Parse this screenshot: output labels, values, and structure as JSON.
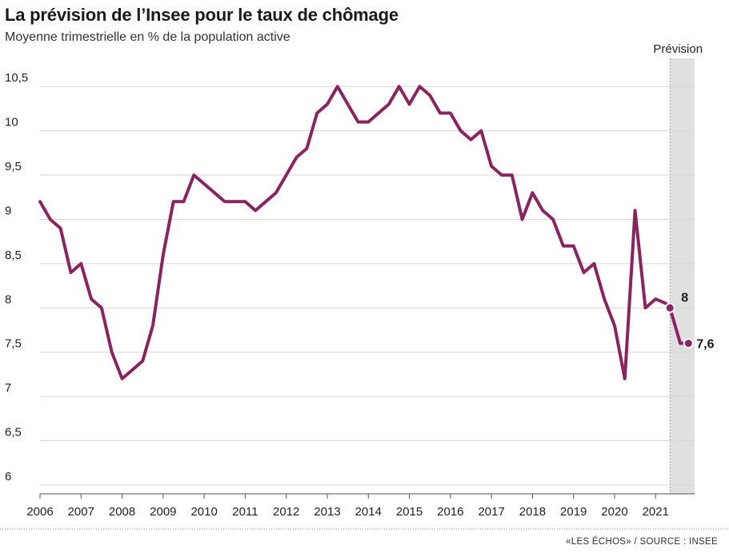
{
  "title": "La prévision de l’Insee pour le taux de chômage",
  "subtitle": "Moyenne trimestrielle en % de la population active",
  "source": "«LES ÉCHOS» / SOURCE : INSEE",
  "colors": {
    "line": "#8a2460",
    "forecast_band": "#e0e0e0",
    "grid": "#d6d6d6"
  },
  "chart_data": {
    "type": "line",
    "title": "La prévision de l’Insee pour le taux de chômage",
    "subtitle": "Moyenne trimestrielle en % de la population active",
    "xlabel": "",
    "ylabel": "",
    "x_ticks": [
      "2006",
      "2007",
      "2008",
      "2009",
      "2010",
      "2011",
      "2012",
      "2013",
      "2014",
      "2015",
      "2016",
      "2017",
      "2018",
      "2019",
      "2020",
      "2021"
    ],
    "y_ticks": [
      "6",
      "6,5",
      "7",
      "7,5",
      "8",
      "8,5",
      "9",
      "9,5",
      "10",
      "10,5"
    ],
    "ylim": [
      5.9,
      10.8
    ],
    "xlim": [
      2006.0,
      2021.95
    ],
    "grid": true,
    "forecast": {
      "label": "Prévision",
      "start": 2021.35,
      "end": 2021.95
    },
    "series": [
      {
        "values": [
          [
            2006.0,
            9.2
          ],
          [
            2006.25,
            9.0
          ],
          [
            2006.5,
            8.9
          ],
          [
            2006.75,
            8.4
          ],
          [
            2007.0,
            8.5
          ],
          [
            2007.25,
            8.1
          ],
          [
            2007.5,
            8.0
          ],
          [
            2007.75,
            7.5
          ],
          [
            2008.0,
            7.2
          ],
          [
            2008.25,
            7.3
          ],
          [
            2008.5,
            7.4
          ],
          [
            2008.75,
            7.8
          ],
          [
            2009.0,
            8.6
          ],
          [
            2009.25,
            9.2
          ],
          [
            2009.5,
            9.2
          ],
          [
            2009.75,
            9.5
          ],
          [
            2010.0,
            9.4
          ],
          [
            2010.25,
            9.3
          ],
          [
            2010.5,
            9.2
          ],
          [
            2010.75,
            9.2
          ],
          [
            2011.0,
            9.2
          ],
          [
            2011.25,
            9.1
          ],
          [
            2011.5,
            9.2
          ],
          [
            2011.75,
            9.3
          ],
          [
            2012.0,
            9.5
          ],
          [
            2012.25,
            9.7
          ],
          [
            2012.5,
            9.8
          ],
          [
            2012.75,
            10.2
          ],
          [
            2013.0,
            10.3
          ],
          [
            2013.25,
            10.5
          ],
          [
            2013.5,
            10.3
          ],
          [
            2013.75,
            10.1
          ],
          [
            2014.0,
            10.1
          ],
          [
            2014.25,
            10.2
          ],
          [
            2014.5,
            10.3
          ],
          [
            2014.75,
            10.5
          ],
          [
            2015.0,
            10.3
          ],
          [
            2015.25,
            10.5
          ],
          [
            2015.5,
            10.4
          ],
          [
            2015.75,
            10.2
          ],
          [
            2016.0,
            10.2
          ],
          [
            2016.25,
            10.0
          ],
          [
            2016.5,
            9.9
          ],
          [
            2016.75,
            10.0
          ],
          [
            2017.0,
            9.6
          ],
          [
            2017.25,
            9.5
          ],
          [
            2017.5,
            9.5
          ],
          [
            2017.75,
            9.0
          ],
          [
            2018.0,
            9.3
          ],
          [
            2018.25,
            9.1
          ],
          [
            2018.5,
            9.0
          ],
          [
            2018.75,
            8.7
          ],
          [
            2019.0,
            8.7
          ],
          [
            2019.25,
            8.4
          ],
          [
            2019.5,
            8.5
          ],
          [
            2019.75,
            8.1
          ],
          [
            2020.0,
            7.8
          ],
          [
            2020.25,
            7.2
          ],
          [
            2020.5,
            9.1
          ],
          [
            2020.75,
            8.0
          ],
          [
            2021.0,
            8.1
          ],
          [
            2021.25,
            8.05
          ],
          [
            2021.35,
            8.0
          ],
          [
            2021.6,
            7.6
          ],
          [
            2021.8,
            7.6
          ]
        ]
      }
    ],
    "markers": [
      {
        "x": 2021.35,
        "y": 8.0,
        "label": "8"
      },
      {
        "x": 2021.8,
        "y": 7.6,
        "label": "7,6"
      }
    ]
  }
}
